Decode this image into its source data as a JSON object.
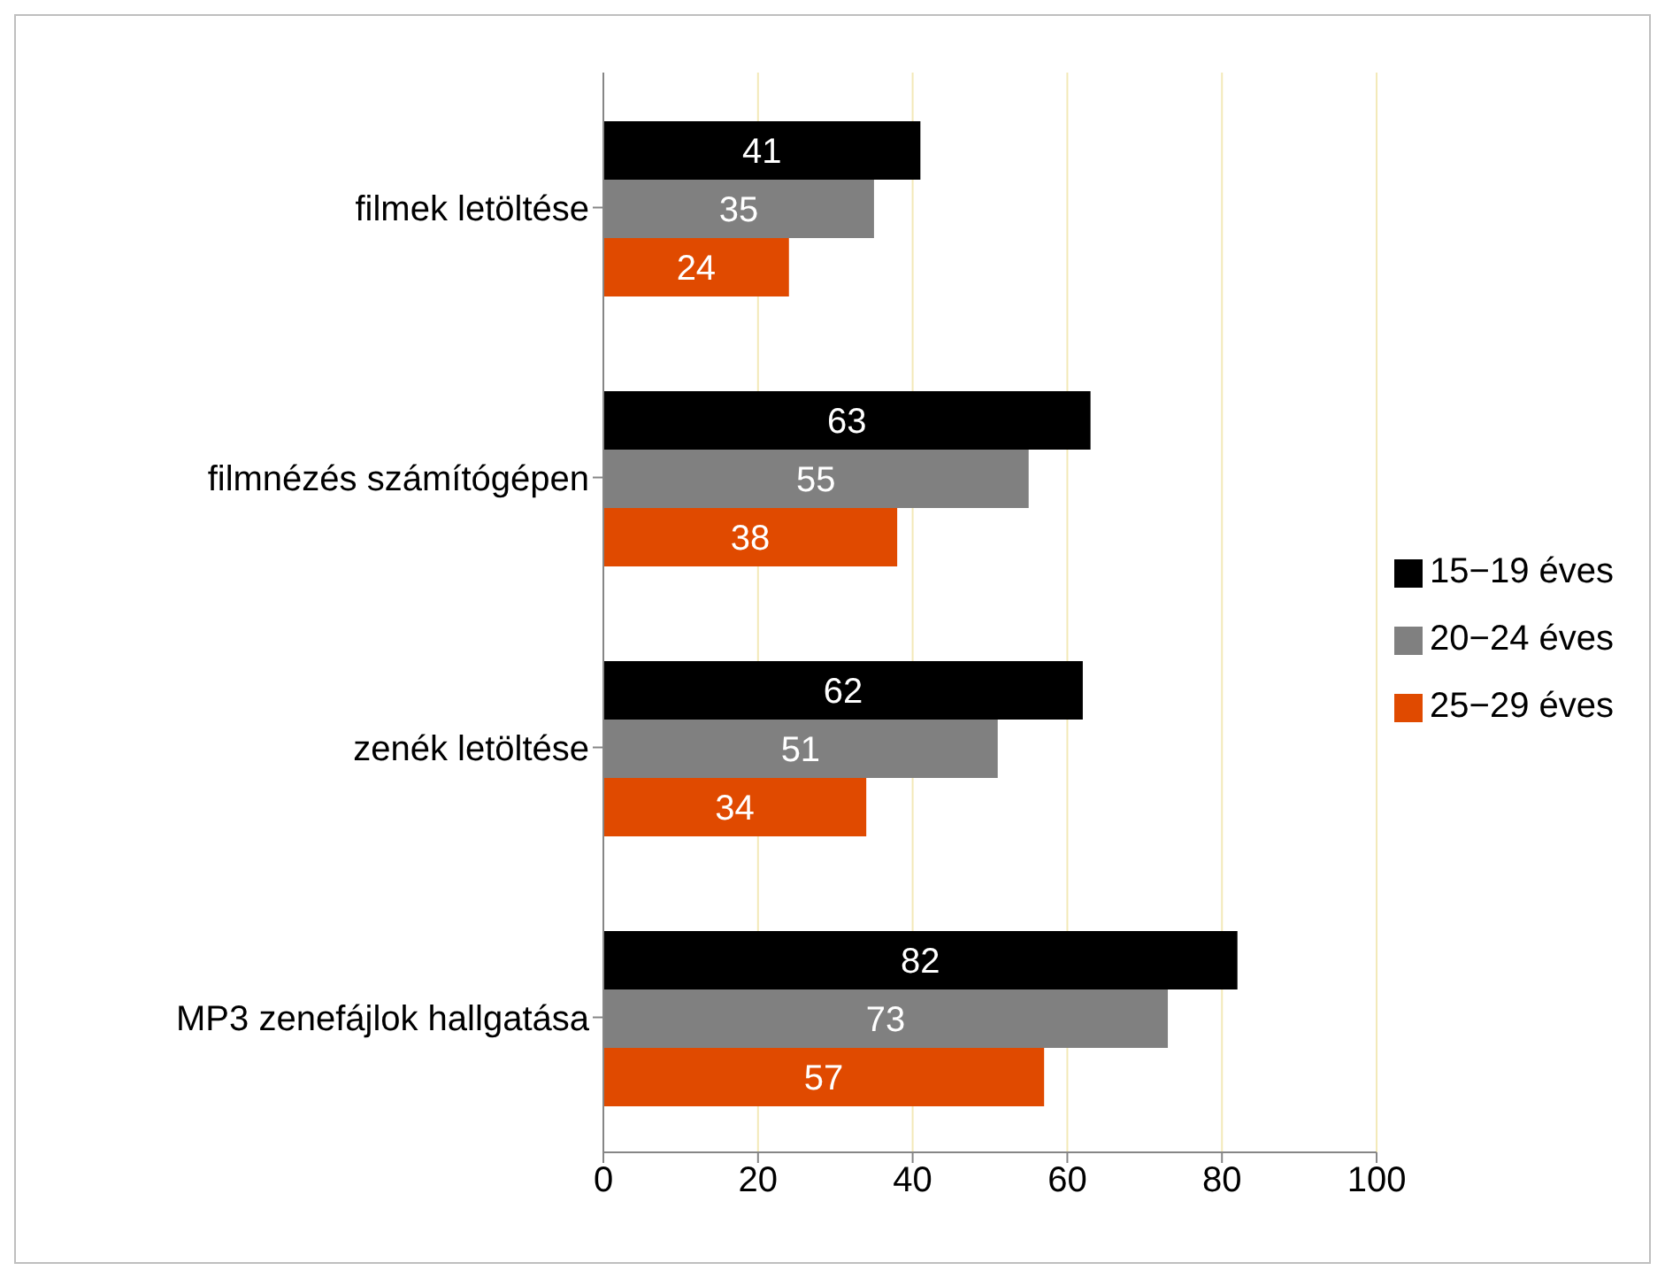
{
  "chart_data": {
    "type": "bar",
    "orientation": "horizontal",
    "categories": [
      "filmek letöltése",
      "filmnézés számítógépen",
      "zenék letöltése",
      "MP3 zenefájlok hallgatása"
    ],
    "series": [
      {
        "name": "15−19 éves",
        "color": "#000000",
        "values": [
          41,
          63,
          62,
          82
        ]
      },
      {
        "name": "20−24 éves",
        "color": "#808080",
        "values": [
          35,
          55,
          51,
          73
        ]
      },
      {
        "name": "25−29 éves",
        "color": "#e04a00",
        "values": [
          24,
          38,
          34,
          57
        ]
      }
    ],
    "xlim": [
      0,
      100
    ],
    "xticks": [
      0,
      20,
      40,
      60,
      80,
      100
    ],
    "grid": "x",
    "legend": "right",
    "data_labels": true
  }
}
